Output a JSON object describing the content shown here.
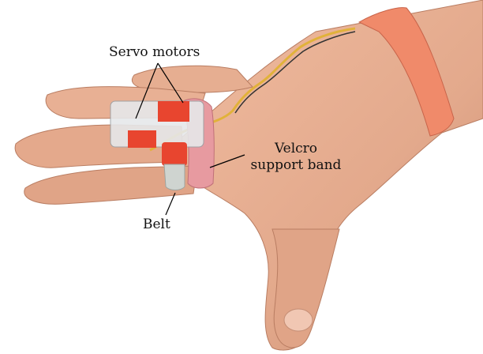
{
  "labels": {
    "servo": "Servo motors",
    "velcro_line1": "Velcro",
    "velcro_line2": "support band",
    "belt": "Belt"
  },
  "colors": {
    "skin": "#e3a98c",
    "skin_shadow": "#c88a6e",
    "strap": "#f08a6a",
    "velcro": "#e79aa0",
    "device_orange": "#e8452f",
    "cable": "#e1b23a",
    "belt": "#cfd4d0"
  }
}
